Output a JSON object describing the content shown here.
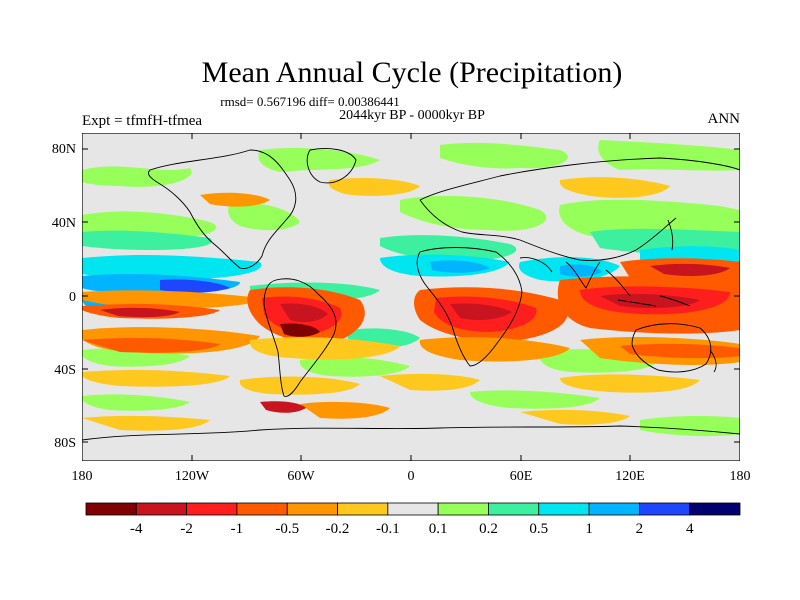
{
  "title": "Mean Annual Cycle (Precipitation)",
  "stats": "rmsd= 0.567196  diff= 0.00386441",
  "period": "2044kyr BP - 0000kyr BP",
  "experiment": "Expt = tfmfH-tfmea",
  "season": "ANN",
  "lat_ticks": [
    "80N",
    "40N",
    "0",
    "40S",
    "80S"
  ],
  "lon_ticks": [
    "180",
    "120W",
    "60W",
    "0",
    "60E",
    "120E",
    "180"
  ],
  "colorbar": {
    "labels": [
      "-4",
      "-2",
      "-1",
      "-0.5",
      "-0.2",
      "-0.1",
      "0.1",
      "0.2",
      "0.5",
      "1",
      "2",
      "4"
    ],
    "colors": [
      "#7f0000",
      "#c8141e",
      "#ff1e1e",
      "#ff5a00",
      "#ff9600",
      "#ffc81e",
      "#e6e6e6",
      "#96ff5a",
      "#3cf0a0",
      "#00e6f0",
      "#00b4ff",
      "#1e46ff",
      "#00006e"
    ]
  }
}
